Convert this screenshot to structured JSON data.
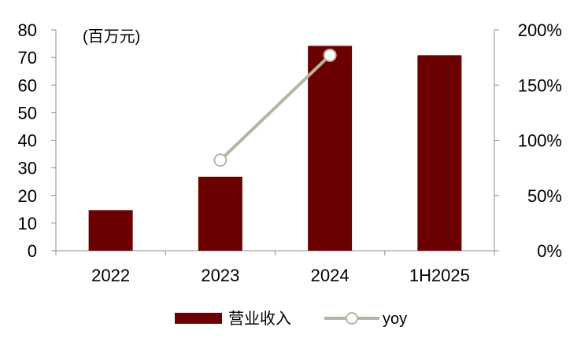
{
  "chart_data": {
    "type": "bar",
    "categories": [
      "2022",
      "2023",
      "2024",
      "1H2025"
    ],
    "unit_label": "(百万元)",
    "y_left": {
      "ylim": [
        0,
        80
      ],
      "ticks": [
        "0",
        "10",
        "20",
        "30",
        "40",
        "50",
        "60",
        "70",
        "80"
      ]
    },
    "y_right": {
      "ylim": [
        0,
        2
      ],
      "ticks": [
        "0%",
        "50%",
        "100%",
        "150%",
        "200%"
      ]
    },
    "grid": false,
    "legend_position": "bottom",
    "series": [
      {
        "name": "营业收入",
        "type": "bar",
        "axis": "left",
        "color": "#6b0000",
        "values": [
          14.7,
          26.8,
          74.2,
          70.8
        ]
      },
      {
        "name": "yoy",
        "type": "line",
        "axis": "right",
        "color": "#b5b5a5",
        "marker": "hollow-circle",
        "values": [
          null,
          0.82,
          1.77,
          null
        ]
      }
    ]
  }
}
